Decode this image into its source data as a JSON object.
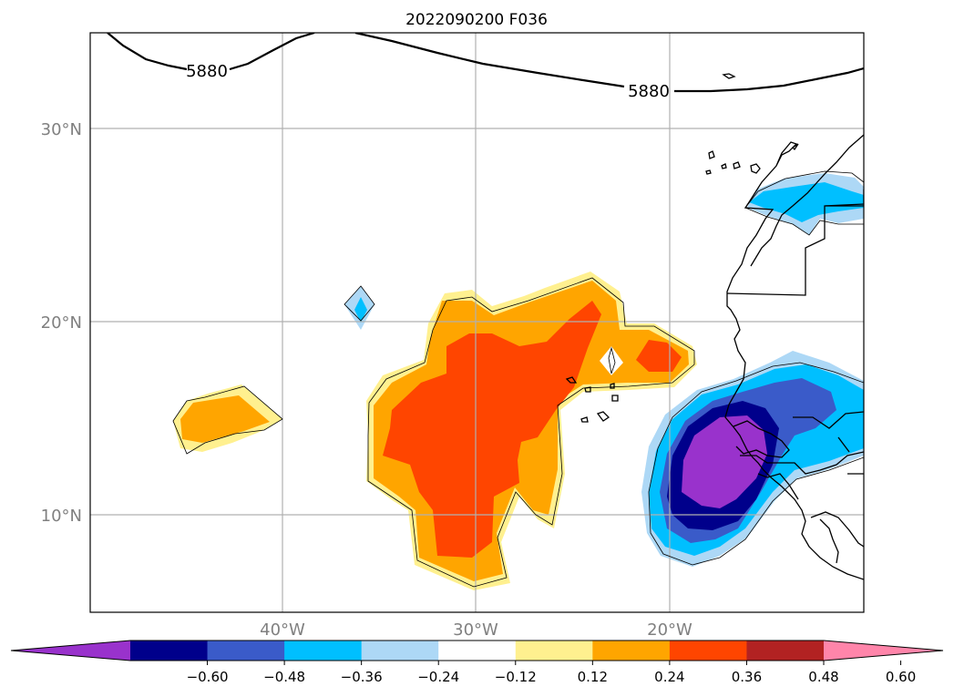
{
  "title": "2022090200 F036",
  "latitude_labels": [
    "30°N",
    "20°N",
    "10°N"
  ],
  "longitude_labels": [
    "40°W",
    "30°W",
    "20°W"
  ],
  "contour_labels": [
    "5880",
    "5880"
  ],
  "colorbar": {
    "tick_labels": [
      "−0.60",
      "−0.48",
      "−0.36",
      "−0.24",
      "−0.12",
      "0.12",
      "0.24",
      "0.36",
      "0.48",
      "0.60"
    ],
    "colors": [
      "#9932cc",
      "#00008b",
      "#3a5bc9",
      "#00bfff",
      "#add8f6",
      "#ffffff",
      "#fff08f",
      "#ffa500",
      "#ff4500",
      "#b22222",
      "#ff85aa"
    ]
  },
  "colors": {
    "grid": "#b0b0b0",
    "tick_label": "#808080",
    "contour": "#000000"
  }
}
